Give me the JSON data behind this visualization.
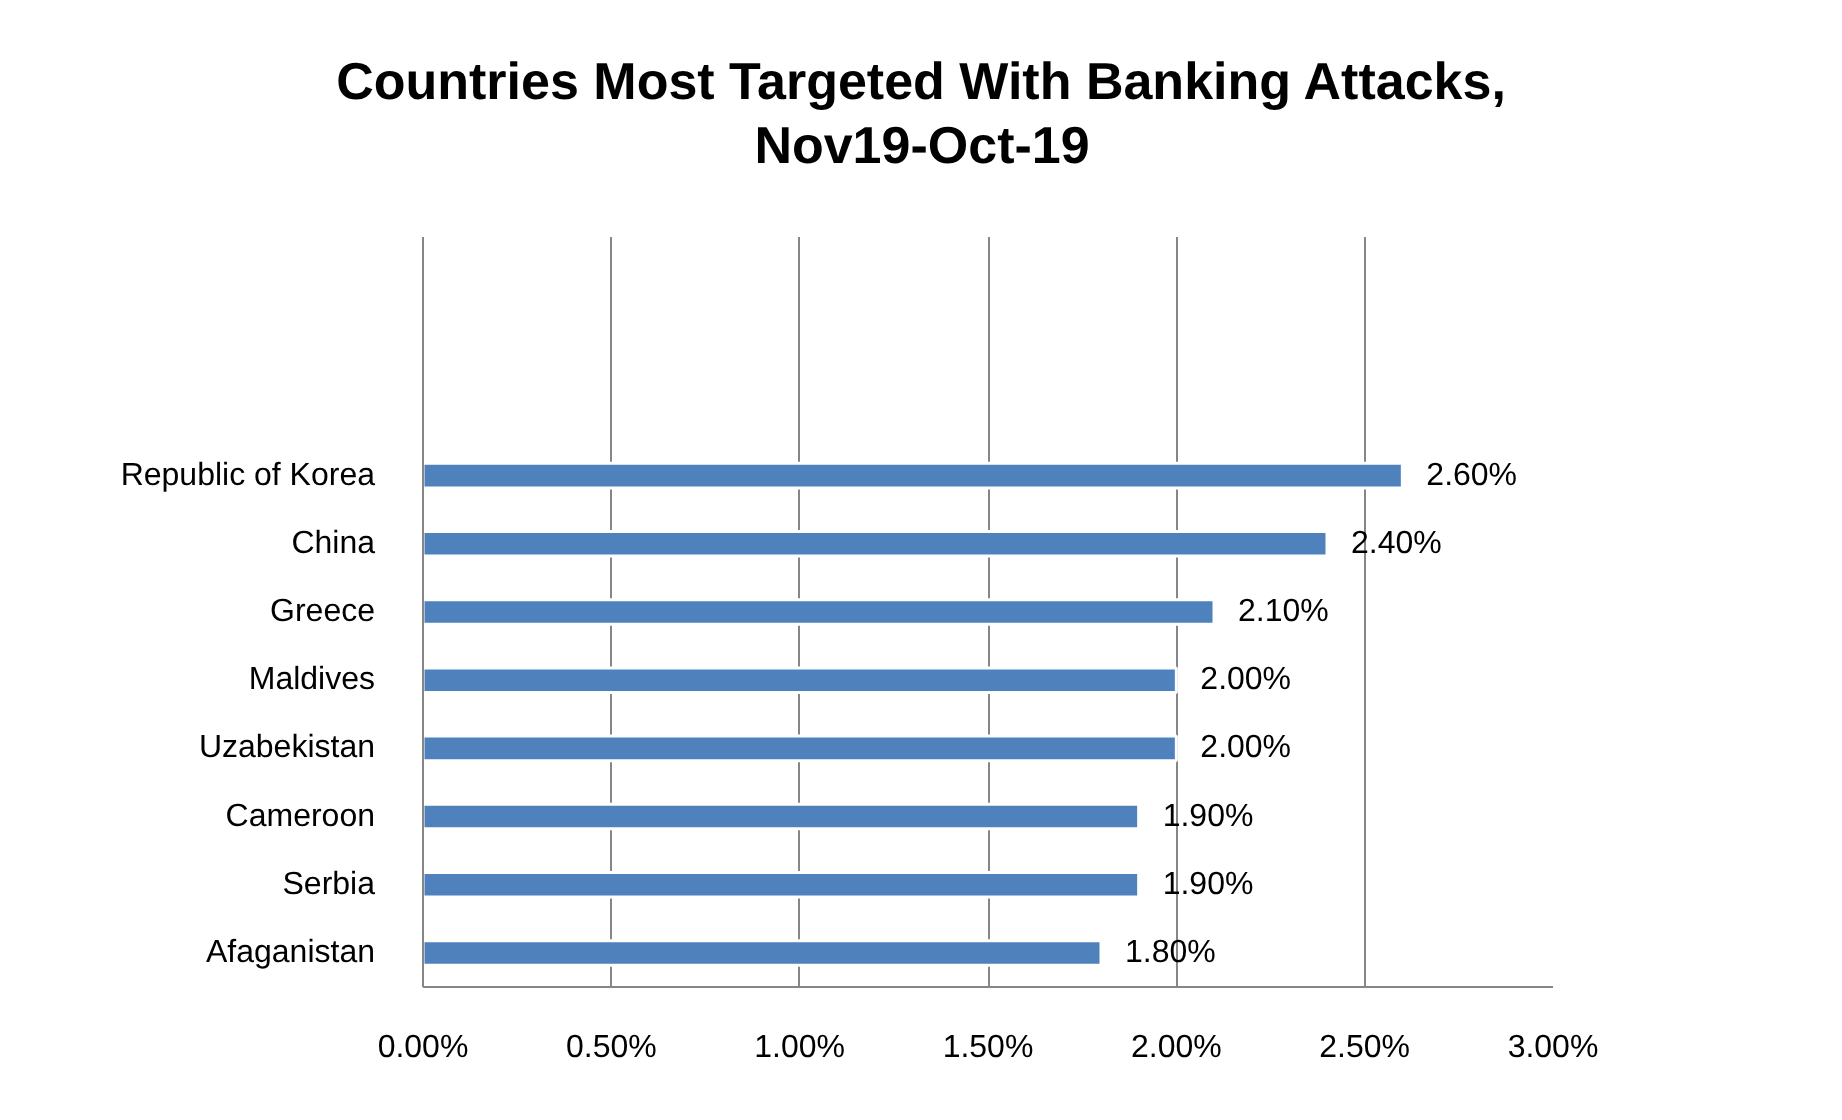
{
  "chart_data": {
    "type": "bar",
    "orientation": "horizontal",
    "title": "Countries Most Targeted With Banking Attacks, Nov19-Oct-19",
    "categories": [
      null,
      null,
      null,
      "Republic of Korea",
      "China",
      "Greece",
      "Maldives",
      "Uzabekistan",
      "Cameroon",
      "Serbia",
      "Afaganistan"
    ],
    "values": [
      null,
      null,
      null,
      2.6,
      2.4,
      2.1,
      2.0,
      2.0,
      1.9,
      1.9,
      1.8
    ],
    "value_labels": [
      null,
      null,
      null,
      "2.60%",
      "2.40%",
      "2.10%",
      "2.00%",
      "2.00%",
      "1.90%",
      "1.90%",
      "1.80%"
    ],
    "color": "#4f81bd",
    "xlim": [
      0,
      3
    ],
    "xticks": [
      {
        "value": 0,
        "label": "0.00%"
      },
      {
        "value": 0.5,
        "label": "0.50%"
      },
      {
        "value": 1,
        "label": "1.00%"
      },
      {
        "value": 1.5,
        "label": "1.50%"
      },
      {
        "value": 2,
        "label": "2.00%"
      },
      {
        "value": 2.5,
        "label": "2.50%"
      },
      {
        "value": 3,
        "label": "3.00%"
      }
    ],
    "grid": "x"
  }
}
